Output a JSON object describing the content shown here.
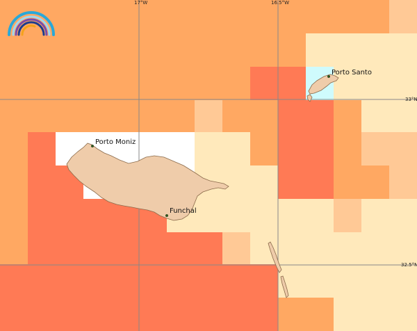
{
  "map": {
    "palette": {
      "level_1": "#ffe9bb",
      "level_2": "#ffc996",
      "level_3": "#ffa862",
      "level_4": "#ff7a55",
      "cyan_cell": "#cffbfd",
      "no_data": "#ffffff",
      "land": "#efccaa",
      "coast": "#8a6a4a",
      "grid": "#888888"
    },
    "graticule": {
      "lon_labels": [
        "17°W",
        "16.5°W"
      ],
      "lat_labels": [
        "33°N",
        "32.5°N"
      ]
    },
    "places": [
      {
        "name": "Porto Santo"
      },
      {
        "name": "Porto Moniz"
      },
      {
        "name": "Funchal"
      }
    ],
    "logo": {
      "arc_colors": [
        "#2aa8d8",
        "#7a4ca8",
        "#1b3d8f",
        "#f4a21d"
      ]
    }
  }
}
